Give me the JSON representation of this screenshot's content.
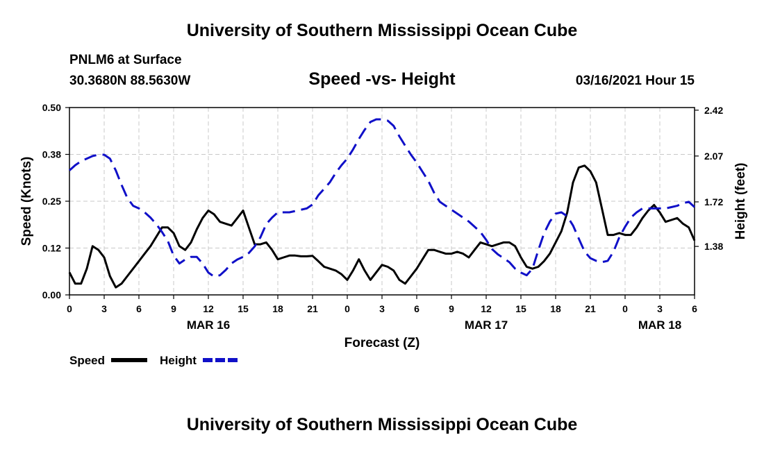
{
  "header": {
    "title": "University of Southern Mississippi Ocean Cube",
    "station": "PNLM6 at Surface",
    "coords": "30.3680N 88.5630W",
    "chart_title": "Speed -vs- Height",
    "datetime": "03/16/2021 Hour 15"
  },
  "footer": {
    "title": "University of Southern Mississippi Ocean Cube"
  },
  "colors": {
    "speed": "#000000",
    "height": "#1010c8",
    "grid": "#c8c8c8"
  },
  "chart_data": {
    "type": "line",
    "title": "Speed -vs- Height",
    "xlabel": "Forecast (Z)",
    "ylabel": "Speed (Knots)",
    "y2label": "Height (feet)",
    "xlim": [
      0,
      54
    ],
    "ylim": [
      0,
      0.5
    ],
    "y2lim": [
      1.01,
      2.44
    ],
    "x_ticks": [
      0,
      3,
      6,
      9,
      12,
      15,
      18,
      21,
      24,
      27,
      30,
      33,
      36,
      39,
      42,
      45,
      48,
      51,
      54
    ],
    "x_tick_labels": [
      "0",
      "3",
      "6",
      "9",
      "12",
      "15",
      "18",
      "21",
      "0",
      "3",
      "6",
      "9",
      "12",
      "15",
      "18",
      "21",
      "0",
      "3",
      "6"
    ],
    "y_ticks": [
      0.0,
      0.125,
      0.25,
      0.375,
      0.5
    ],
    "y_tick_labels": [
      "0.00",
      "0.12",
      "0.25",
      "0.38",
      "0.50"
    ],
    "y2_ticks": [
      1.38,
      1.72,
      2.07,
      2.42
    ],
    "y2_tick_labels": [
      "1.38",
      "1.72",
      "2.07",
      "2.42"
    ],
    "date_labels": [
      {
        "label": "MAR 16",
        "x": 12
      },
      {
        "label": "MAR 17",
        "x": 36
      },
      {
        "label": "MAR 18",
        "x": 51
      }
    ],
    "grid": true,
    "legend_position": "bottom-left",
    "series": [
      {
        "name": "Speed",
        "axis": "left",
        "style": "solid",
        "x": [
          0,
          0.5,
          1,
          1.5,
          2,
          2.5,
          3,
          3.5,
          4,
          4.5,
          5,
          5.5,
          6,
          6.5,
          7,
          7.5,
          8,
          8.5,
          9,
          9.5,
          10,
          10.5,
          11,
          11.5,
          12,
          12.5,
          13,
          13.5,
          14,
          14.5,
          15,
          15.5,
          16,
          16.5,
          17,
          17.5,
          18,
          18.5,
          19,
          19.5,
          20,
          20.5,
          21,
          21.5,
          22,
          22.5,
          23,
          23.5,
          24,
          24.5,
          25,
          25.5,
          26,
          26.5,
          27,
          27.5,
          28,
          28.5,
          29,
          29.5,
          30,
          30.5,
          31,
          31.5,
          32,
          32.5,
          33,
          33.5,
          34,
          34.5,
          35,
          35.5,
          36,
          36.5,
          37,
          37.5,
          38,
          38.5,
          39,
          39.5,
          40,
          40.5,
          41,
          41.5,
          42,
          42.5,
          43,
          43.5,
          44,
          44.5,
          45,
          45.5,
          46,
          46.5,
          47,
          47.5,
          48,
          48.5,
          49,
          49.5,
          50,
          50.5,
          51,
          51.5,
          52,
          52.5,
          53,
          53.5,
          54
        ],
        "values": [
          0.06,
          0.03,
          0.03,
          0.07,
          0.13,
          0.12,
          0.1,
          0.05,
          0.02,
          0.03,
          0.05,
          0.07,
          0.09,
          0.11,
          0.13,
          0.155,
          0.18,
          0.18,
          0.165,
          0.13,
          0.12,
          0.14,
          0.175,
          0.205,
          0.225,
          0.215,
          0.195,
          0.19,
          0.185,
          0.205,
          0.225,
          0.18,
          0.135,
          0.135,
          0.14,
          0.12,
          0.095,
          0.1,
          0.105,
          0.105,
          0.103,
          0.103,
          0.104,
          0.09,
          0.075,
          0.07,
          0.065,
          0.055,
          0.04,
          0.065,
          0.095,
          0.065,
          0.04,
          0.06,
          0.08,
          0.075,
          0.065,
          0.04,
          0.03,
          0.05,
          0.07,
          0.095,
          0.12,
          0.12,
          0.115,
          0.11,
          0.11,
          0.115,
          0.11,
          0.1,
          0.12,
          0.14,
          0.135,
          0.13,
          0.135,
          0.14,
          0.14,
          0.13,
          0.1,
          0.075,
          0.07,
          0.075,
          0.09,
          0.11,
          0.14,
          0.17,
          0.22,
          0.3,
          0.34,
          0.345,
          0.33,
          0.3,
          0.23,
          0.16,
          0.16,
          0.165,
          0.16,
          0.16,
          0.18,
          0.205,
          0.225,
          0.24,
          0.22,
          0.195,
          0.2,
          0.205,
          0.19,
          0.18,
          0.145
        ]
      },
      {
        "name": "Height",
        "axis": "right",
        "style": "dashed",
        "x": [
          0,
          0.5,
          1,
          1.5,
          2,
          2.5,
          3,
          3.5,
          4,
          4.5,
          5,
          5.5,
          6,
          6.5,
          7,
          7.5,
          8,
          8.5,
          9,
          9.5,
          10,
          10.5,
          11,
          11.5,
          12,
          12.5,
          13,
          13.5,
          14,
          14.5,
          15,
          15.5,
          16,
          16.5,
          17,
          17.5,
          18,
          18.5,
          19,
          19.5,
          20,
          20.5,
          21,
          21.5,
          22,
          22.5,
          23,
          23.5,
          24,
          24.5,
          25,
          25.5,
          26,
          26.5,
          27,
          27.5,
          28,
          28.5,
          29,
          29.5,
          30,
          30.5,
          31,
          31.5,
          32,
          32.5,
          33,
          33.5,
          34,
          34.5,
          35,
          35.5,
          36,
          36.5,
          37,
          37.5,
          38,
          38.5,
          39,
          39.5,
          40,
          40.5,
          41,
          41.5,
          42,
          42.5,
          43,
          43.5,
          44,
          44.5,
          45,
          45.5,
          46,
          46.5,
          47,
          47.5,
          48,
          48.5,
          49,
          49.5,
          50,
          50.5,
          51,
          51.5,
          52,
          52.5,
          53,
          53.5,
          54
        ],
        "values": [
          1.96,
          2.0,
          2.03,
          2.05,
          2.07,
          2.08,
          2.08,
          2.05,
          1.96,
          1.85,
          1.75,
          1.69,
          1.67,
          1.64,
          1.6,
          1.55,
          1.49,
          1.42,
          1.31,
          1.25,
          1.28,
          1.3,
          1.3,
          1.25,
          1.18,
          1.15,
          1.16,
          1.2,
          1.25,
          1.28,
          1.3,
          1.33,
          1.38,
          1.45,
          1.55,
          1.6,
          1.64,
          1.64,
          1.64,
          1.65,
          1.66,
          1.67,
          1.7,
          1.77,
          1.82,
          1.87,
          1.94,
          2.0,
          2.05,
          2.12,
          2.2,
          2.27,
          2.33,
          2.35,
          2.35,
          2.34,
          2.3,
          2.22,
          2.15,
          2.08,
          2.02,
          1.95,
          1.88,
          1.79,
          1.72,
          1.69,
          1.66,
          1.63,
          1.6,
          1.57,
          1.53,
          1.49,
          1.43,
          1.36,
          1.32,
          1.29,
          1.26,
          1.21,
          1.18,
          1.16,
          1.21,
          1.35,
          1.48,
          1.57,
          1.63,
          1.64,
          1.61,
          1.54,
          1.44,
          1.34,
          1.29,
          1.27,
          1.26,
          1.27,
          1.34,
          1.45,
          1.53,
          1.6,
          1.64,
          1.67,
          1.67,
          1.67,
          1.67,
          1.67,
          1.68,
          1.69,
          1.71,
          1.72,
          1.68
        ]
      }
    ]
  }
}
